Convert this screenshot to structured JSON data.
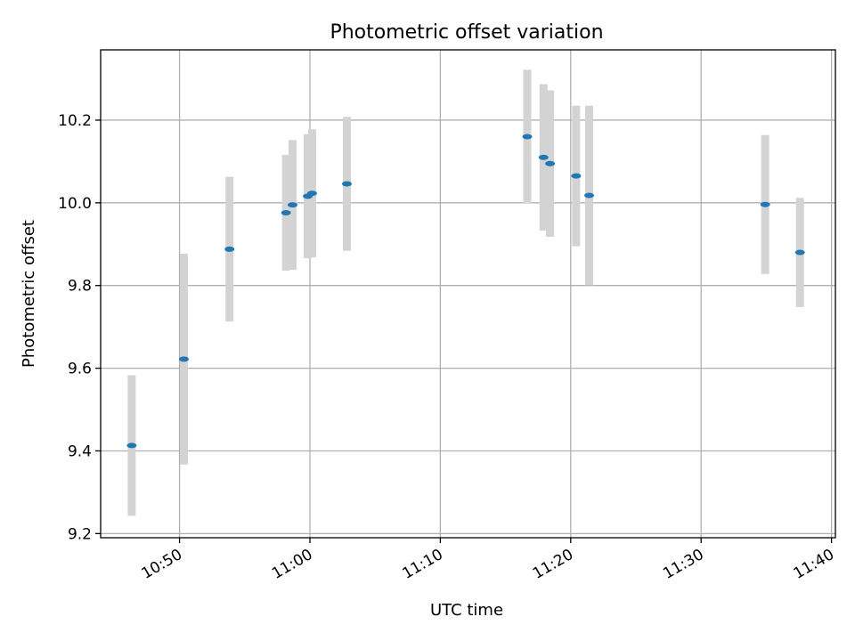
{
  "chart_data": {
    "type": "scatter",
    "title": "Photometric offset variation",
    "xlabel": "UTC time",
    "ylabel": "Photometric offset",
    "x_ticks": [
      "10:50",
      "11:00",
      "11:10",
      "11:20",
      "11:30",
      "11:40"
    ],
    "x_tick_minutes": [
      650,
      660,
      670,
      680,
      690,
      700
    ],
    "xlim_minutes": [
      643.95,
      700.3
    ],
    "ylim": [
      9.19,
      10.37
    ],
    "y_ticks": [
      "9.2",
      "9.4",
      "9.6",
      "9.8",
      "10.0",
      "10.2"
    ],
    "y_tick_values": [
      9.2,
      9.4,
      9.6,
      9.8,
      10.0,
      10.2
    ],
    "grid": true,
    "points": [
      {
        "time": "10:46:20",
        "y": 9.413,
        "err": 0.17
      },
      {
        "time": "10:50:20",
        "y": 9.622,
        "err": 0.255
      },
      {
        "time": "10:53:50",
        "y": 9.888,
        "err": 0.175
      },
      {
        "time": "10:58:10",
        "y": 9.976,
        "err": 0.14
      },
      {
        "time": "10:58:40",
        "y": 9.995,
        "err": 0.157
      },
      {
        "time": "10:59:50",
        "y": 10.016,
        "err": 0.15
      },
      {
        "time": "11:00:10",
        "y": 10.023,
        "err": 0.155
      },
      {
        "time": "11:02:50",
        "y": 10.046,
        "err": 0.162
      },
      {
        "time": "11:16:40",
        "y": 10.16,
        "err": 0.162
      },
      {
        "time": "11:17:55",
        "y": 10.11,
        "err": 0.177
      },
      {
        "time": "11:18:25",
        "y": 10.095,
        "err": 0.177
      },
      {
        "time": "11:20:25",
        "y": 10.065,
        "err": 0.17
      },
      {
        "time": "11:21:25",
        "y": 10.018,
        "err": 0.217
      },
      {
        "time": "11:34:55",
        "y": 9.996,
        "err": 0.168
      },
      {
        "time": "11:37:35",
        "y": 9.88,
        "err": 0.132
      }
    ],
    "colors": {
      "point": "#1f77b4",
      "error_bar": "#d3d3d3",
      "grid": "#b0b0b0"
    }
  }
}
